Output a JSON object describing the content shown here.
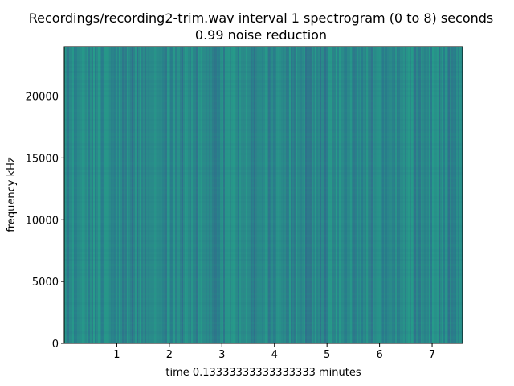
{
  "chart_data": {
    "type": "heatmap",
    "title_lines": [
      "Recordings/recording2-trim.wav interval 1 spectrogram (0 to 8) seconds",
      "0.99 noise reduction"
    ],
    "xlabel": "time 0.13333333333333333 minutes",
    "ylabel": "frequency kHz",
    "xlim": [
      0,
      7.58
    ],
    "ylim": [
      0,
      24000
    ],
    "x_ticks": [
      1,
      2,
      3,
      4,
      5,
      6,
      7
    ],
    "y_ticks": [
      0,
      5000,
      10000,
      15000,
      20000
    ],
    "grid": false,
    "colormap": "viridis",
    "colors": {
      "base": "#2a8a8a",
      "dark": "#2a6f8e",
      "light": "#25a68a",
      "deep": "#355f8d"
    }
  }
}
